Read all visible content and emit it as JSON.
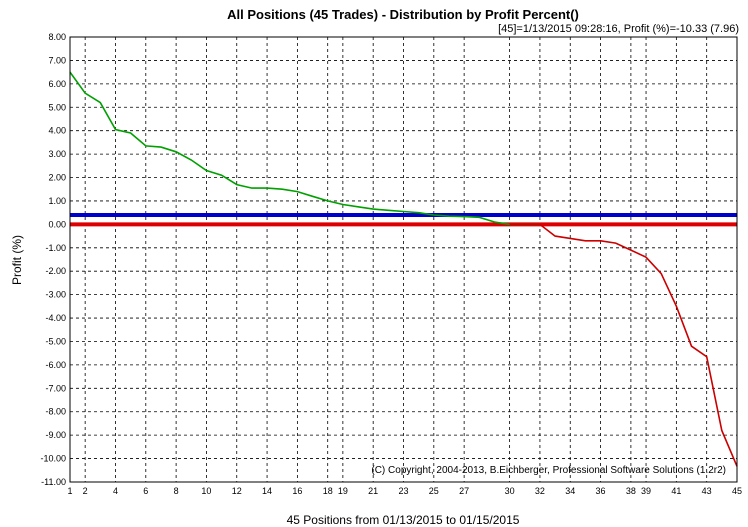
{
  "chart_data": {
    "type": "line",
    "title": "All Positions (45 Trades) - Distribution by Profit Percent()",
    "info": "[45]=1/13/2015 09:28:16,   Profit (%)=-10.33 (7.96)",
    "ylabel": "Profit (%)",
    "xlabel": "45 Positions from 01/13/2015 to 01/15/2015",
    "copyright": "(C) Copyright, 2004-2013, B.Eichberger, Professional Software Solutions (1.2r2)",
    "ylim": [
      -11,
      8
    ],
    "xlim": [
      1,
      45
    ],
    "y_ticks": [
      "8.00",
      "7.00",
      "6.00",
      "5.00",
      "4.00",
      "3.00",
      "2.00",
      "1.00",
      "0.00",
      "-1.00",
      "-2.00",
      "-3.00",
      "-4.00",
      "-5.00",
      "-6.00",
      "-7.00",
      "-8.00",
      "-9.00",
      "-10.00",
      "-11.00"
    ],
    "x_ticks": [
      "1",
      "2",
      "4",
      "6",
      "8",
      "10",
      "12",
      "14",
      "16",
      "18",
      "19",
      "21",
      "23",
      "25",
      "27",
      "30",
      "32",
      "34",
      "36",
      "38",
      "39",
      "41",
      "43",
      "45"
    ],
    "grid": true,
    "x": [
      1,
      2,
      3,
      4,
      5,
      6,
      7,
      8,
      9,
      10,
      11,
      12,
      13,
      14,
      15,
      16,
      17,
      18,
      19,
      20,
      21,
      22,
      23,
      24,
      25,
      26,
      27,
      28,
      29,
      30,
      31,
      32,
      33,
      34,
      35,
      36,
      37,
      38,
      39,
      40,
      41,
      42,
      43,
      44,
      45
    ],
    "values": [
      6.5,
      5.6,
      5.2,
      4.05,
      3.9,
      3.35,
      3.3,
      3.1,
      2.75,
      2.3,
      2.1,
      1.7,
      1.55,
      1.55,
      1.5,
      1.4,
      1.2,
      1.0,
      0.85,
      0.75,
      0.65,
      0.6,
      0.55,
      0.5,
      0.4,
      0.35,
      0.33,
      0.3,
      0.1,
      0.0,
      0.0,
      0.0,
      -0.5,
      -0.6,
      -0.7,
      -0.7,
      -0.8,
      -1.1,
      -1.4,
      -2.1,
      -3.5,
      -5.2,
      -5.65,
      -8.8,
      -10.33
    ],
    "positive_color": "#00a000",
    "negative_color": "#cc0000",
    "average_line": 0.4,
    "average_color": "#0000cc",
    "zero_line": 0.0,
    "zero_color": "#dd0000"
  }
}
